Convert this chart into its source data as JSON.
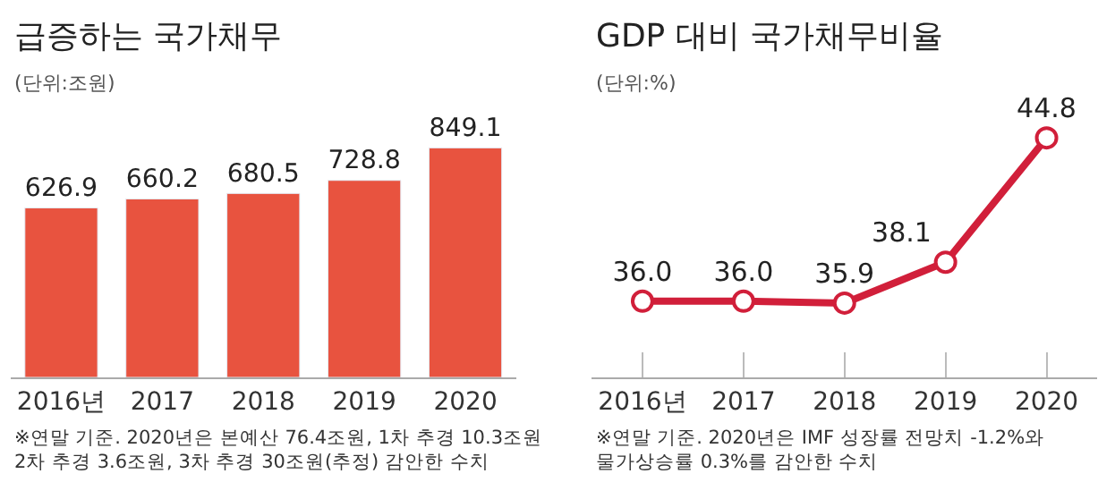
{
  "chart_data": [
    {
      "type": "bar",
      "title": "급증하는 국가채무",
      "subtitle": "(단위:조원)",
      "categories": [
        "2016년",
        "2017",
        "2018",
        "2019",
        "2020"
      ],
      "values": [
        626.9,
        660.2,
        680.5,
        728.8,
        849.1
      ],
      "color": "#e8533f",
      "data_labels": true,
      "tick_labels": "x",
      "annotations": [
        "※연말 기준. 2020년은 본예산 76.4조원, 1차 추경 10.3조원\n2차 추경 3.6조원, 3차 추경 30조원(추정) 감안한 수치"
      ]
    },
    {
      "type": "line",
      "title": "GDP 대비 국가채무비율",
      "subtitle": "(단위:%)",
      "categories": [
        "2016년",
        "2017",
        "2018",
        "2019",
        "2020"
      ],
      "values": [
        36.0,
        36.0,
        35.9,
        38.1,
        44.8
      ],
      "color": "#d11f3a",
      "marker": "circle",
      "line_style": "solid",
      "value_labels": [
        "36.0",
        "36.0",
        "35.9",
        "38.1",
        "44.8"
      ],
      "tick_labels": "x",
      "annotations": [
        "※연말 기준. 2020년은 IMF 성장률 전망치 -1.2%와\n물가상승률 0.3%를 감안한 수치"
      ]
    }
  ]
}
